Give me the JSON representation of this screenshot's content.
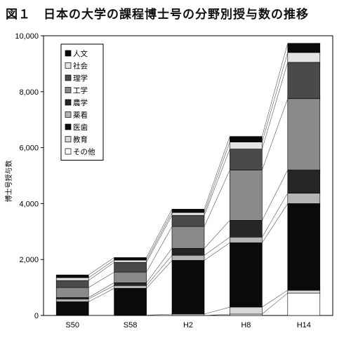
{
  "title": {
    "number": "図１",
    "text": "日本の大学の課程博士号の分野別授与数の推移"
  },
  "chart_data": {
    "type": "bar",
    "stacked": true,
    "categories": [
      "S50",
      "S58",
      "H2",
      "H8",
      "H14"
    ],
    "ylabel": "博士号授与数",
    "xlabel": "",
    "ylim": [
      0,
      10000
    ],
    "yticks": [
      "0",
      "2,000",
      "4,000",
      "6,000",
      "8,000",
      "10,000"
    ],
    "grid": false,
    "legend_position": "top-left",
    "series": [
      {
        "name": "その他",
        "values": [
          0,
          0,
          0,
          50,
          800
        ],
        "color": "#ffffff"
      },
      {
        "name": "教育",
        "values": [
          10,
          10,
          50,
          250,
          100
        ],
        "color": "#d8d8d8"
      },
      {
        "name": "医歯",
        "values": [
          480,
          960,
          1920,
          2300,
          3100
        ],
        "color": "#0a0a0a"
      },
      {
        "name": "薬看",
        "values": [
          100,
          100,
          180,
          200,
          370
        ],
        "color": "#b4b4b4"
      },
      {
        "name": "農学",
        "values": [
          50,
          100,
          250,
          600,
          830
        ],
        "color": "#262626"
      },
      {
        "name": "工学",
        "values": [
          360,
          380,
          780,
          1800,
          2550
        ],
        "color": "#8a8a8a"
      },
      {
        "name": "理学",
        "values": [
          250,
          350,
          400,
          750,
          1300
        ],
        "color": "#4a4a4a"
      },
      {
        "name": "社会",
        "values": [
          100,
          80,
          100,
          250,
          350
        ],
        "color": "#e4e4e4"
      },
      {
        "name": "人文",
        "values": [
          100,
          90,
          120,
          200,
          330
        ],
        "color": "#0a0a0a"
      }
    ]
  }
}
